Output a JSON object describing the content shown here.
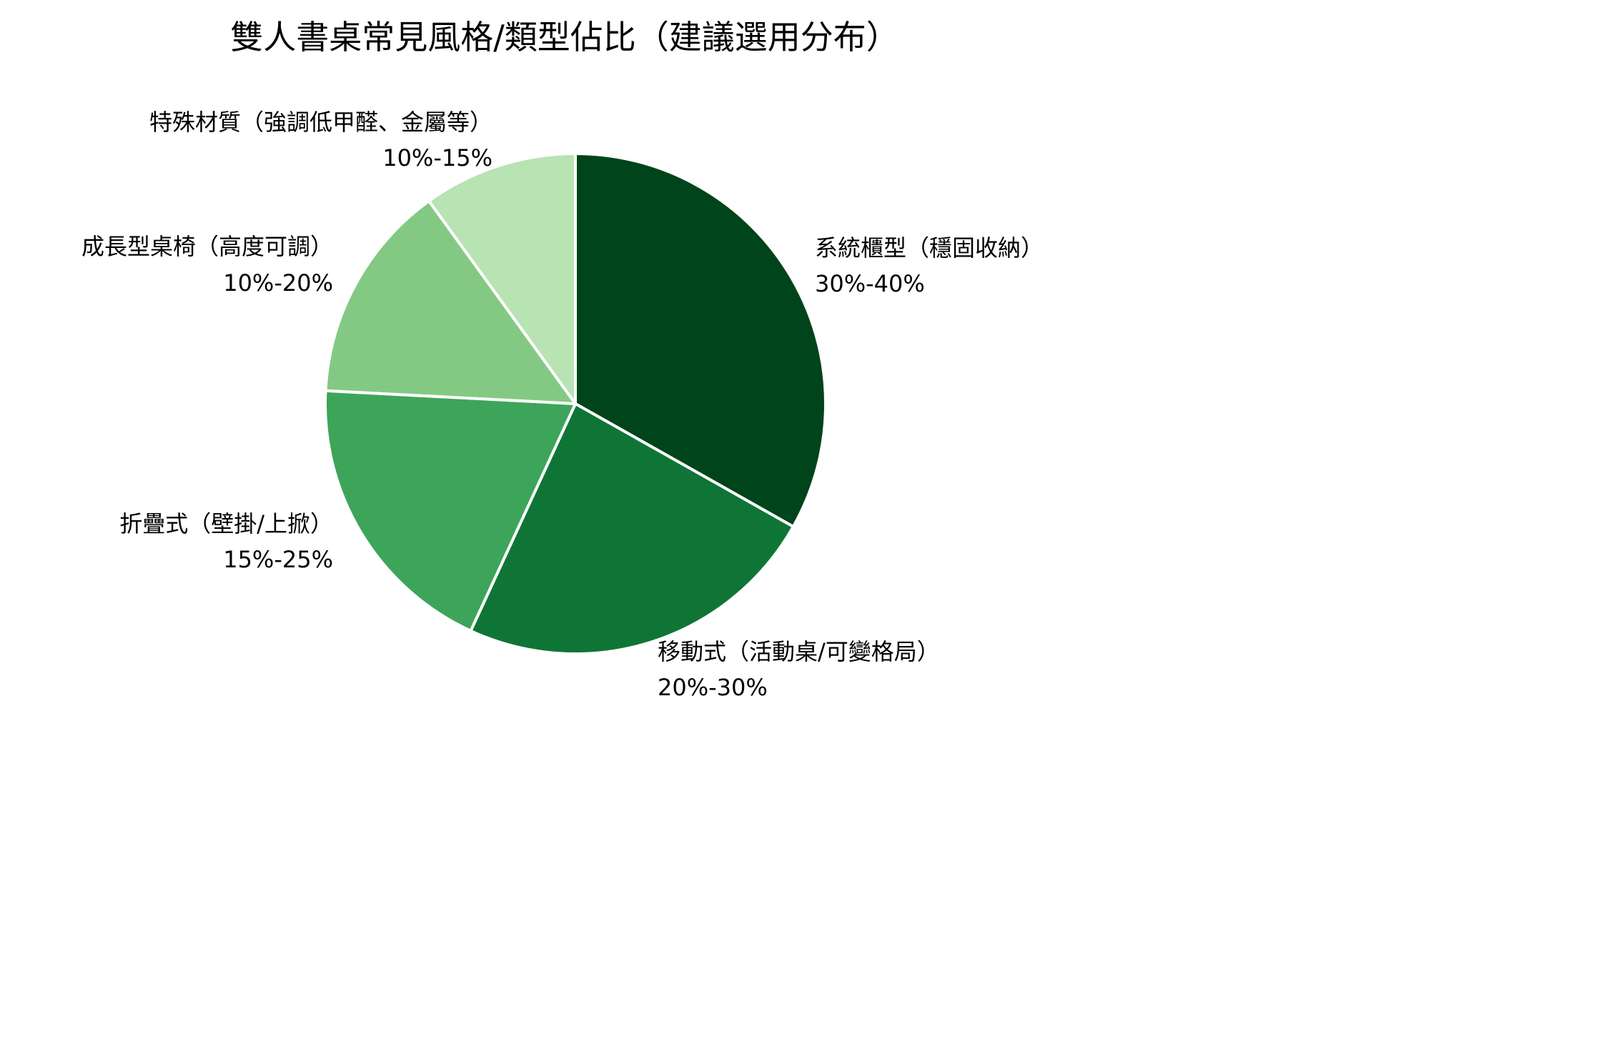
{
  "chart_data": {
    "type": "pie",
    "title": "雙人書桌常見風格/類型佔比（建議選用分布）",
    "start_angle": "12 o'clock",
    "direction": "clockwise",
    "slices": [
      {
        "label": "系統櫃型（穩固收納）",
        "range_text": "30%-40%",
        "value": 35,
        "color": "#00441b"
      },
      {
        "label": "移動式（活動桌/可變格局）",
        "range_text": "20%-30%",
        "value": 25,
        "color": "#0f7536"
      },
      {
        "label": "折疊式（壁掛/上掀）",
        "range_text": "15%-25%",
        "value": 20,
        "color": "#3da55a"
      },
      {
        "label": "成長型桌椅（高度可調）",
        "range_text": "10%-20%",
        "value": 15,
        "color": "#84c983"
      },
      {
        "label": "特殊材質（強調低甲醛、金屬等）",
        "range_text": "10%-15%",
        "value": 10.5,
        "color": "#b8e3b3"
      }
    ],
    "legend": "none"
  }
}
